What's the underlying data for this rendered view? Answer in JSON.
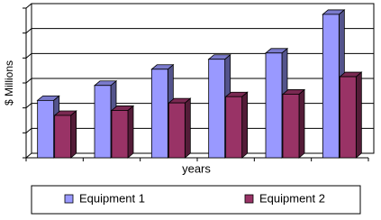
{
  "chart_data": {
    "type": "bar3d",
    "categories": [
      null,
      null,
      null,
      null,
      null,
      null
    ],
    "x_label": "years",
    "y_label": "$ Millions",
    "series": [
      {
        "name": "Equipment 1",
        "color": "#9999ff",
        "values": [
          2.3,
          2.9,
          3.55,
          3.95,
          4.2,
          5.75
        ]
      },
      {
        "name": "Equipment 2",
        "color": "#993366",
        "values": [
          1.7,
          1.9,
          2.2,
          2.45,
          2.55,
          3.25
        ]
      }
    ],
    "ylim": [
      0,
      6
    ],
    "yticks": [
      0,
      1,
      2,
      3,
      4,
      5,
      6
    ],
    "ytick_labels": false,
    "grid": true,
    "legend": "bottom"
  }
}
